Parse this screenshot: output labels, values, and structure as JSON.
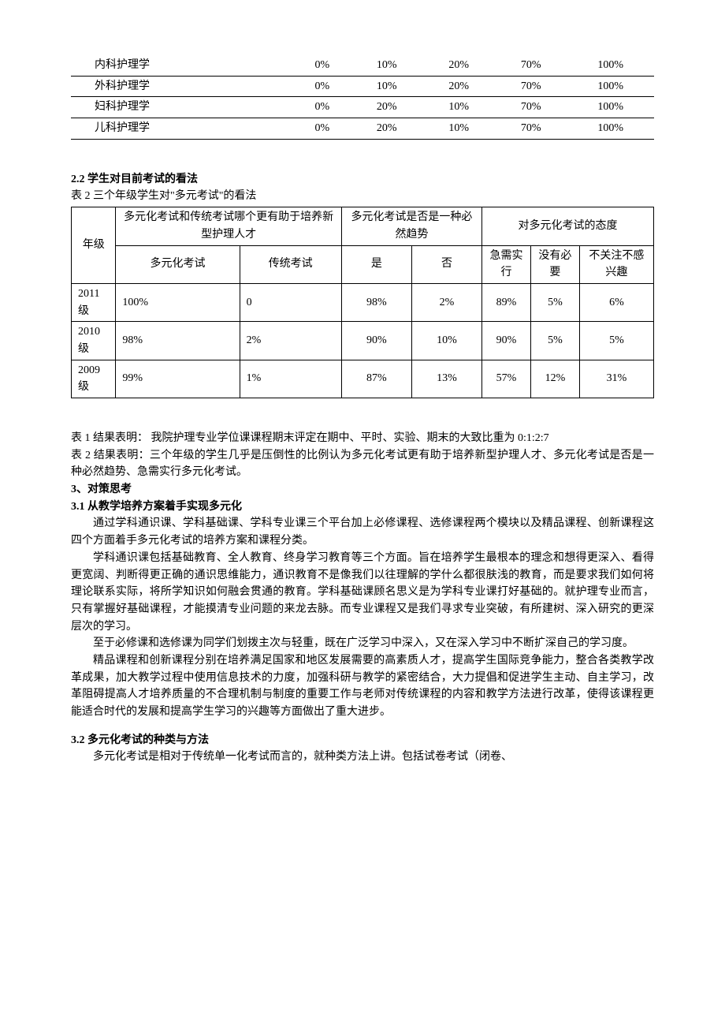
{
  "table1": {
    "rows": [
      {
        "subject": "内科护理学",
        "c1": "0%",
        "c2": "10%",
        "c3": "20%",
        "c4": "70%",
        "c5": "100%"
      },
      {
        "subject": "外科护理学",
        "c1": "0%",
        "c2": "10%",
        "c3": "20%",
        "c4": "70%",
        "c5": "100%"
      },
      {
        "subject": "妇科护理学",
        "c1": "0%",
        "c2": "20%",
        "c3": "10%",
        "c4": "70%",
        "c5": "100%"
      },
      {
        "subject": "儿科护理学",
        "c1": "0%",
        "c2": "20%",
        "c3": "10%",
        "c4": "70%",
        "c5": "100%"
      }
    ]
  },
  "sec22_title": "2.2 学生对目前考试的看法",
  "table2": {
    "caption": "表 2  三个年级学生对\"多元考试\"的看法",
    "head_grade": "年级",
    "head_q1": "多元化考试和传统考试哪个更有助于培养新型护理人才",
    "head_q2": "多元化考试是否是一种必然趋势",
    "head_q3": "对多元化考试的态度",
    "sub_div": "多元化考试",
    "sub_trad": "传统考试",
    "sub_yes": "是",
    "sub_no": "否",
    "sub_a1": "急需实行",
    "sub_a2": "没有必要",
    "sub_a3": "不关注不感兴趣",
    "rows": [
      {
        "grade": "2011 级",
        "div": "100%",
        "trad": "0",
        "yes": "98%",
        "no": "2%",
        "a1": "89%",
        "a2": "5%",
        "a3": "6%"
      },
      {
        "grade": "2010 级",
        "div": "98%",
        "trad": "2%",
        "yes": "90%",
        "no": "10%",
        "a1": "90%",
        "a2": "5%",
        "a3": "5%"
      },
      {
        "grade": "2009 级",
        "div": "99%",
        "trad": "1%",
        "yes": "87%",
        "no": "13%",
        "a1": "57%",
        "a2": "12%",
        "a3": "31%"
      }
    ]
  },
  "result1": "表 1 结果表明：  我院护理专业学位课课程期末评定在期中、平时、实验、期末的大致比重为 0:1:2:7",
  "result2": "表 2 结果表明：三个年级的学生几乎是压倒性的比例认为多元化考试更有助于培养新型护理人才、多元化考试是否是一种必然趋势、急需实行多元化考试。",
  "sec3_title": "3、对策思考",
  "sec31_title": "3.1  从教学培养方案着手实现多元化",
  "sec31_p1": "通过学科通识课、学科基础课、学科专业课三个平台加上必修课程、选修课程两个模块以及精品课程、创新课程这四个方面着手多元化考试的培养方案和课程分类。",
  "sec31_p2": "学科通识课包括基础教育、全人教育、终身学习教育等三个方面。旨在培养学生最根本的理念和想得更深入、看得更宽阔、判断得更正确的通识思维能力，通识教育不是像我们以往理解的学什么都很肤浅的教育，而是要求我们如何将理论联系实际，将所学知识如何融会贯通的教育。学科基础课顾名思义是为学科专业课打好基础的。就护理专业而言，只有掌握好基础课程，才能摸清专业问题的来龙去脉。而专业课程又是我们寻求专业突破，有所建树、深入研究的更深层次的学习。",
  "sec31_p3": "至于必修课和选修课为同学们划拨主次与轻重，既在广泛学习中深入，又在深入学习中不断扩深自己的学习度。",
  "sec31_p4": "精品课程和创新课程分别在培养满足国家和地区发展需要的高素质人才，提高学生国际竞争能力，整合各类教学改革成果，加大教学过程中使用信息技术的力度，加强科研与教学的紧密结合，大力提倡和促进学生主动、自主学习，改革阻碍提高人才培养质量的不合理机制与制度的重要工作与老师对传统课程的内容和教学方法进行改革，使得该课程更能适合时代的发展和提高学生学习的兴趣等方面做出了重大进步。",
  "sec32_title": "3.2 多元化考试的种类与方法",
  "sec32_p1": "多元化考试是相对于传统单一化考试而言的，就种类方法上讲。包括试卷考试（闭卷、"
}
